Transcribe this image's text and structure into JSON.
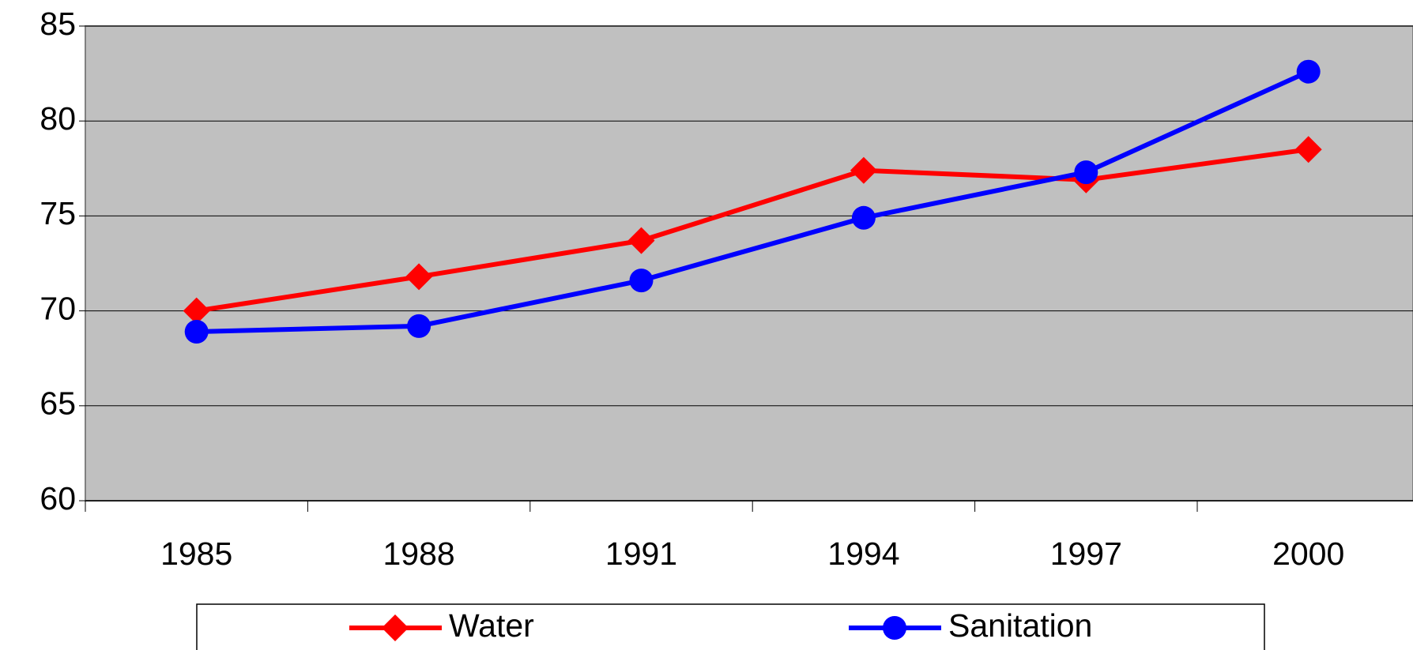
{
  "chart_data": {
    "type": "line",
    "categories": [
      "1985",
      "1988",
      "1991",
      "1994",
      "1997",
      "2000"
    ],
    "series": [
      {
        "name": "Water",
        "color": "#ff0000",
        "marker": "diamond",
        "values": [
          70.0,
          71.8,
          73.7,
          77.4,
          76.9,
          78.5
        ]
      },
      {
        "name": "Sanitation",
        "color": "#0000ff",
        "marker": "circle",
        "values": [
          68.9,
          69.2,
          71.6,
          74.9,
          77.3,
          82.6
        ]
      }
    ],
    "ylim": [
      60,
      85
    ],
    "yticks": [
      60,
      65,
      70,
      75,
      80,
      85
    ],
    "grid": true,
    "legend": "bottom"
  }
}
